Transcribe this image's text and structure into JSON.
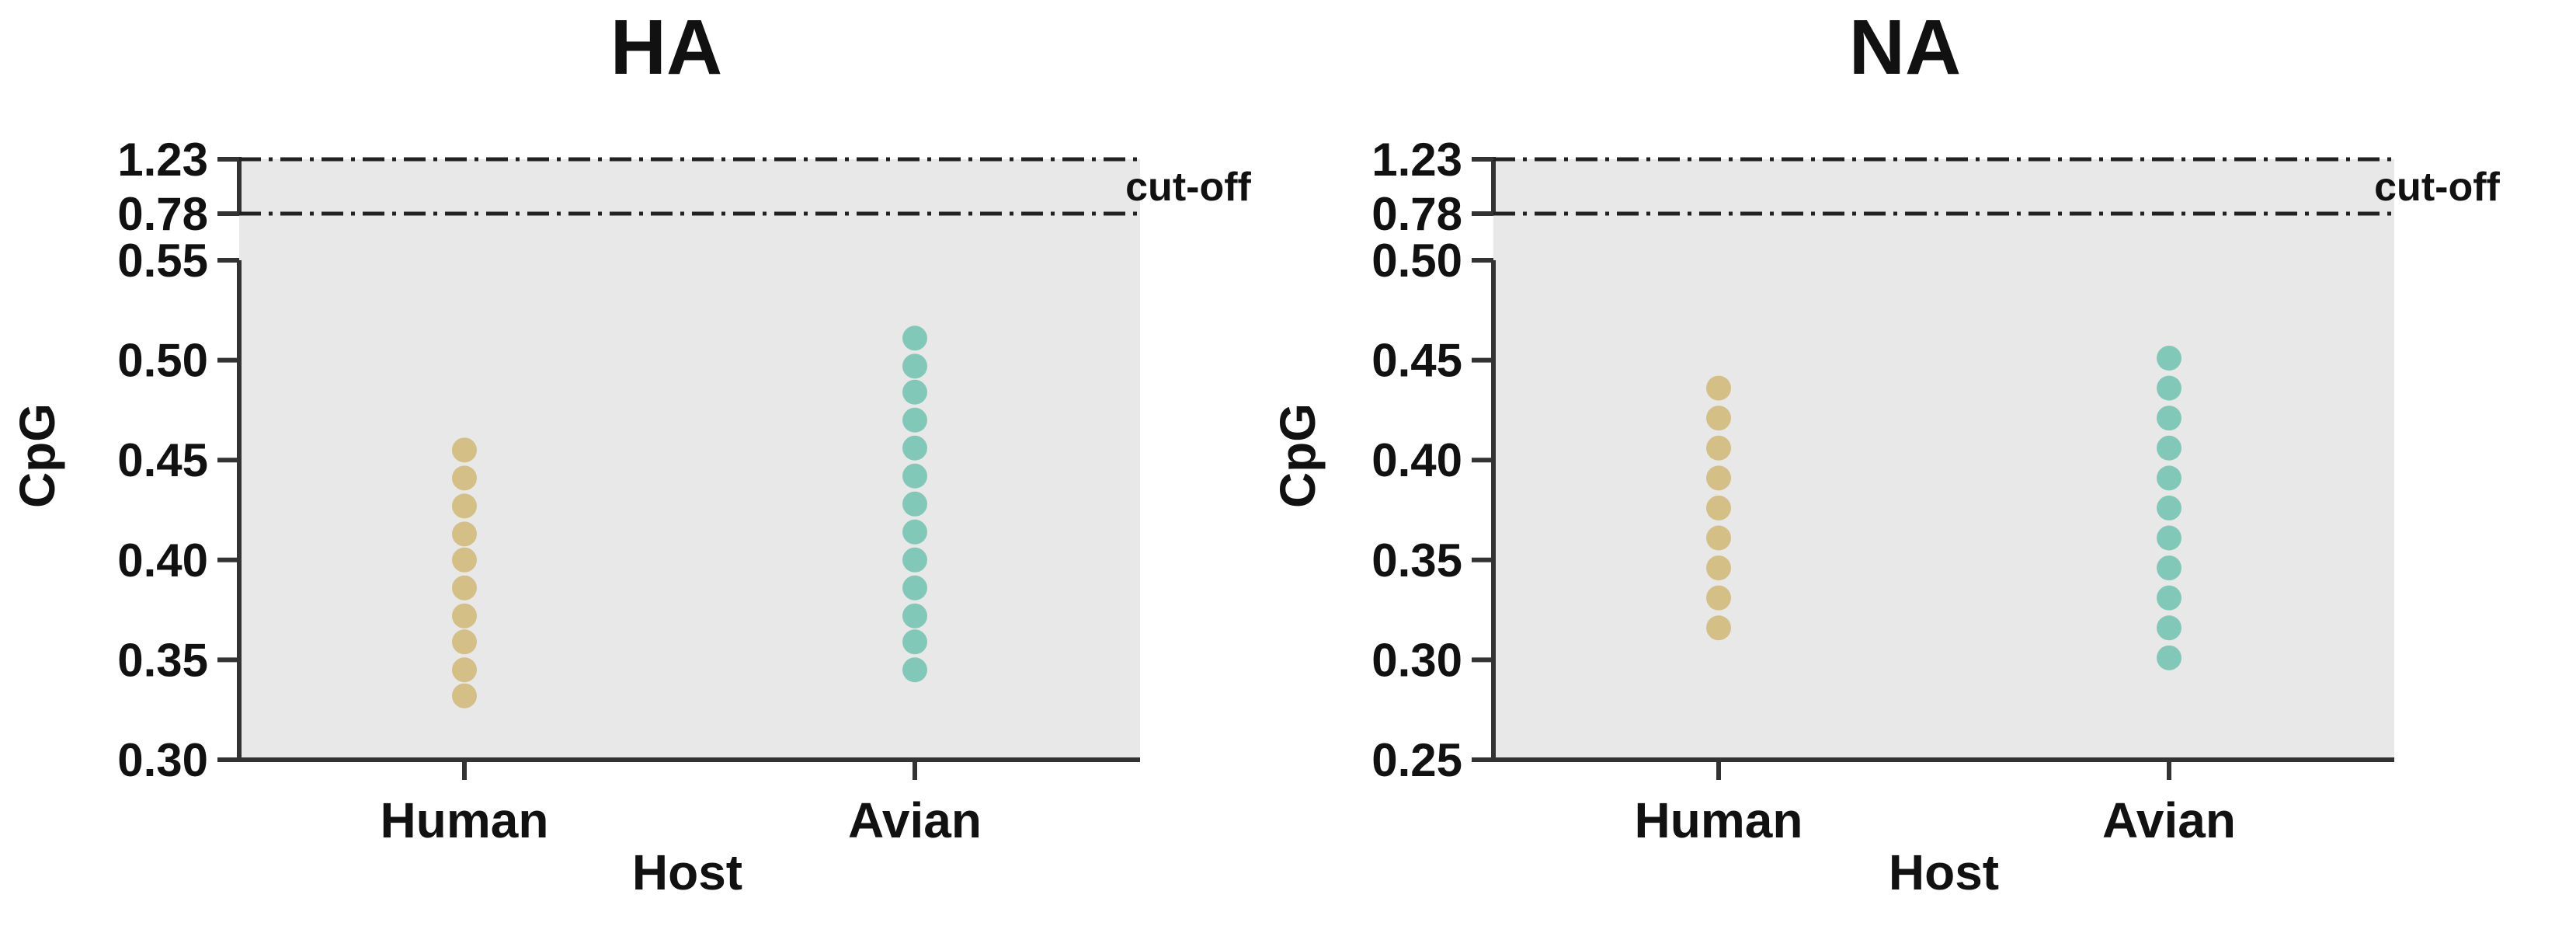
{
  "colors": {
    "background": "#ffffff",
    "panel": "#e8e8e8",
    "axis": "#333333",
    "human": "#d4bf86",
    "avian": "#82c8b8"
  },
  "chart_data": [
    {
      "type": "scatter",
      "title": "HA",
      "xlabel": "Host",
      "ylabel": "CpG",
      "categories": [
        "Human",
        "Avian"
      ],
      "ylim": [
        0.3,
        0.55
      ],
      "yticks": [
        "0.30",
        "0.35",
        "0.40",
        "0.45",
        "0.50",
        "0.55"
      ],
      "broken_axis_ticks": [
        "0.78",
        "1.23"
      ],
      "cutoff_label": "cut-off",
      "cutoff_values": [
        0.78,
        1.23
      ],
      "grid": false,
      "series": [
        {
          "category": "Human",
          "values": [
            0.332,
            0.345,
            0.359,
            0.372,
            0.386,
            0.4,
            0.413,
            0.427,
            0.441,
            0.455
          ]
        },
        {
          "category": "Avian",
          "values": [
            0.345,
            0.359,
            0.372,
            0.386,
            0.4,
            0.414,
            0.428,
            0.442,
            0.456,
            0.47,
            0.484,
            0.497,
            0.511
          ]
        }
      ]
    },
    {
      "type": "scatter",
      "title": "NA",
      "xlabel": "Host",
      "ylabel": "CpG",
      "categories": [
        "Human",
        "Avian"
      ],
      "ylim": [
        0.25,
        0.5
      ],
      "yticks": [
        "0.25",
        "0.30",
        "0.35",
        "0.40",
        "0.45",
        "0.50"
      ],
      "broken_axis_ticks": [
        "0.78",
        "1.23"
      ],
      "cutoff_label": "cut-off",
      "cutoff_values": [
        0.78,
        1.23
      ],
      "grid": false,
      "series": [
        {
          "category": "Human",
          "values": [
            0.316,
            0.331,
            0.346,
            0.361,
            0.376,
            0.391,
            0.406,
            0.421,
            0.436
          ]
        },
        {
          "category": "Avian",
          "values": [
            0.301,
            0.316,
            0.331,
            0.346,
            0.361,
            0.376,
            0.391,
            0.406,
            0.421,
            0.436,
            0.451
          ]
        }
      ]
    }
  ]
}
